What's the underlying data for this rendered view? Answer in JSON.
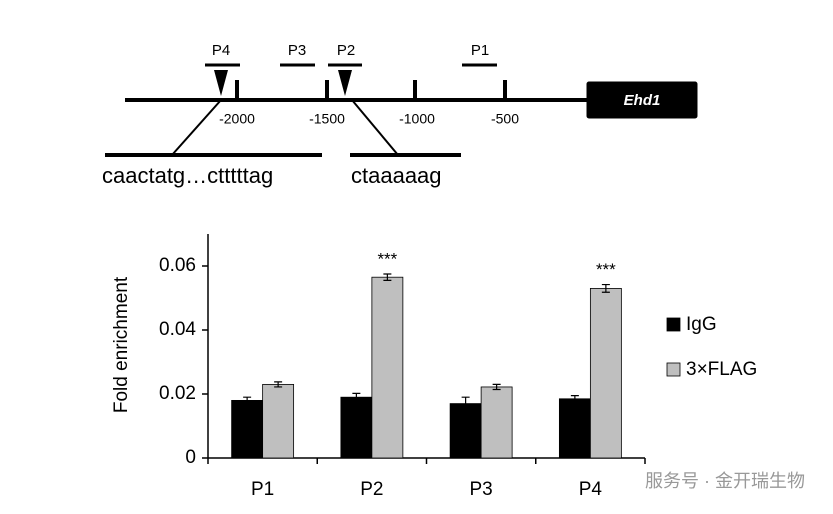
{
  "diagram": {
    "gene": "Ehd1",
    "primers": [
      "P4",
      "P3",
      "P2",
      "P1"
    ],
    "positions": [
      "-2000",
      "-1500",
      "-1000",
      "-500"
    ],
    "sequences": [
      "caactatg…ctttttag",
      "ctaaaaag"
    ]
  },
  "chart_data": {
    "type": "bar",
    "ylabel": "Fold enrichment",
    "categories": [
      "P1",
      "P2",
      "P3",
      "P4"
    ],
    "series": [
      {
        "name": "IgG",
        "color": "#000000",
        "values": [
          0.018,
          0.019,
          0.017,
          0.0185
        ],
        "errors": [
          0.001,
          0.0012,
          0.002,
          0.001
        ]
      },
      {
        "name": "3×FLAG",
        "color": "#bfbfbf",
        "values": [
          0.023,
          0.0565,
          0.0222,
          0.053
        ],
        "errors": [
          0.0008,
          0.001,
          0.0008,
          0.0012
        ]
      }
    ],
    "ylim": [
      0,
      0.07
    ],
    "yticks": [
      0,
      0.02,
      0.04,
      0.06
    ],
    "annotations": [
      {
        "text": "***",
        "category": "P2",
        "series": "3×FLAG"
      },
      {
        "text": "***",
        "category": "P4",
        "series": "3×FLAG"
      }
    ],
    "legend": "right"
  },
  "watermark": "服务号 · 金开瑞生物"
}
